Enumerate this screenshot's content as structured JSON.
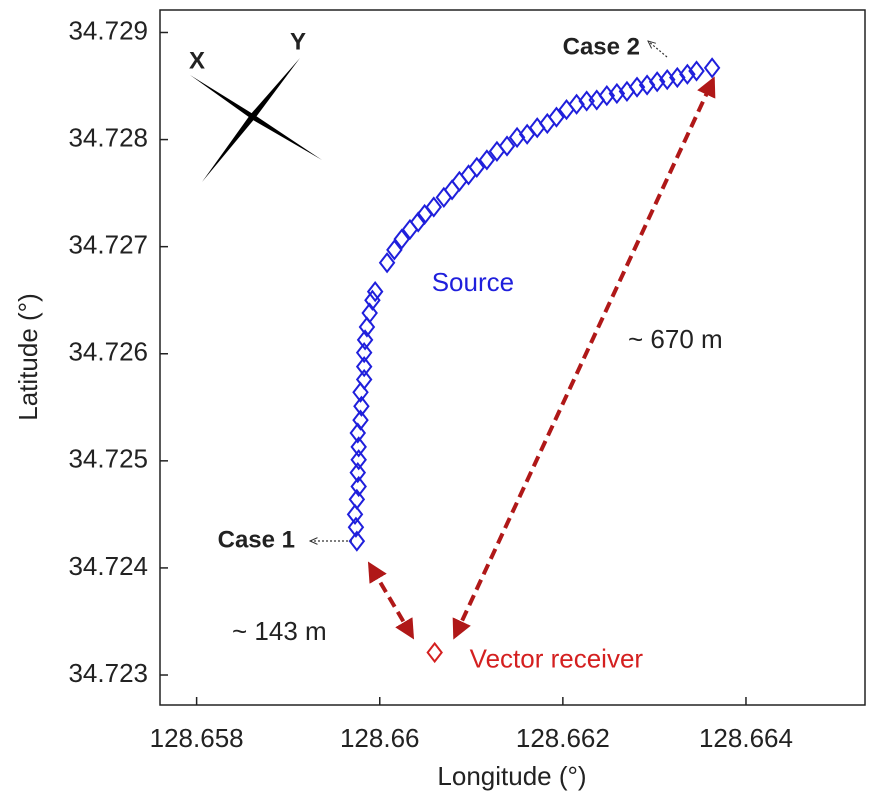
{
  "chart_data": {
    "type": "scatter",
    "xlabel": "Longitude (°)",
    "ylabel": "Latitude (°)",
    "xlim": [
      128.6576,
      128.6653
    ],
    "ylim": [
      34.72272,
      34.72921
    ],
    "xticks": [
      128.658,
      128.66,
      128.662,
      128.664
    ],
    "yticks": [
      34.723,
      34.724,
      34.725,
      34.726,
      34.727,
      34.728,
      34.729
    ],
    "grid": false,
    "series": [
      {
        "name": "Source",
        "color": "#1f1fdc",
        "x": [
          128.65975,
          128.65974,
          128.65973,
          128.65975,
          128.65977,
          128.65976,
          128.65977,
          128.65977,
          128.65976,
          128.65979,
          128.6598,
          128.65979,
          128.65983,
          128.65983,
          128.65983,
          128.65984,
          128.65986,
          128.65989,
          128.65992,
          128.65995,
          128.66008,
          128.66016,
          128.66024,
          128.66033,
          128.66042,
          128.66049,
          128.66059,
          128.6607,
          128.66079,
          128.66087,
          128.66097,
          128.66106,
          128.66117,
          128.66128,
          128.66139,
          128.6615,
          128.66161,
          128.66172,
          128.66183,
          128.66193,
          128.66204,
          128.66215,
          128.66226,
          128.66237,
          128.66248,
          128.66259,
          128.6627,
          128.66281,
          128.66292,
          128.66303,
          128.66314,
          128.66325,
          128.66336,
          128.66346,
          128.66363
        ],
        "values": [
          34.72425,
          34.72438,
          34.7245,
          34.72464,
          34.72476,
          34.72489,
          34.72501,
          34.72513,
          34.72526,
          34.72538,
          34.72551,
          34.72564,
          34.72576,
          34.72588,
          34.72601,
          34.72613,
          34.72625,
          34.72638,
          34.7265,
          34.72658,
          34.72685,
          34.72697,
          34.72707,
          34.72716,
          34.72723,
          34.7273,
          34.72737,
          34.72746,
          34.72753,
          34.72761,
          34.72767,
          34.72774,
          34.72781,
          34.72789,
          34.72794,
          34.72802,
          34.72805,
          34.72811,
          34.72815,
          34.72821,
          34.72828,
          34.72833,
          34.72836,
          34.72837,
          34.72841,
          34.72843,
          34.72845,
          34.72849,
          34.72851,
          34.72854,
          34.72856,
          34.72858,
          34.72861,
          34.72864,
          34.72867
        ]
      },
      {
        "name": "Vector receiver",
        "color": "#d42020",
        "x": [
          128.6606
        ],
        "values": [
          34.72321
        ]
      }
    ],
    "annotations": {
      "case1": "Case 1",
      "case2": "Case 2",
      "d1": "~ 143 m",
      "d2": "~ 670 m",
      "compass_x": "X",
      "compass_y": "Y"
    }
  }
}
